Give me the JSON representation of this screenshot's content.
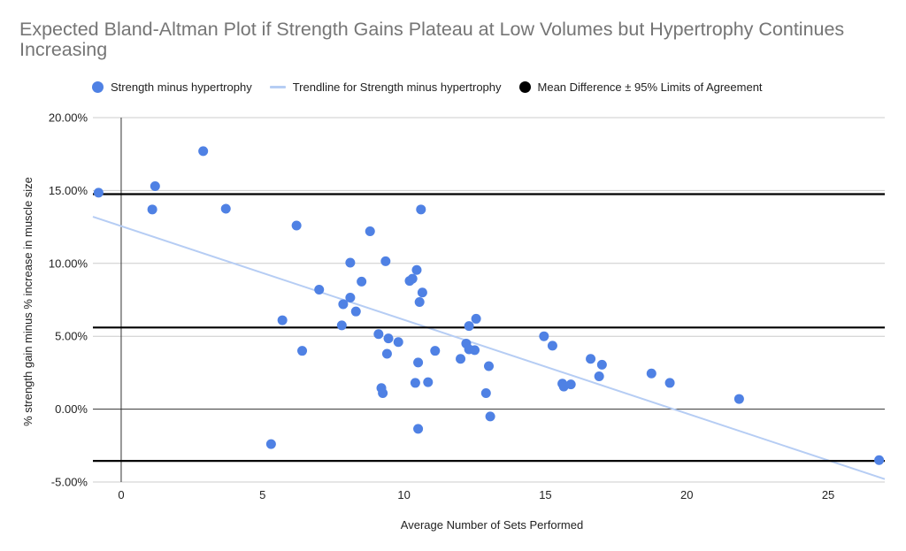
{
  "chart_data": {
    "type": "scatter",
    "title": "Expected Bland-Altman Plot if Strength Gains Plateau at Low Volumes but Hypertrophy Continues Increasing",
    "xlabel": "Average Number of Sets Performed",
    "ylabel": "% strength gain minus % increase in muscle size",
    "xlim": [
      -1,
      27
    ],
    "ylim": [
      -5,
      20
    ],
    "x_ticks": [
      0,
      5,
      10,
      15,
      20,
      25
    ],
    "x_tick_labels": [
      "0",
      "5",
      "10",
      "15",
      "20",
      "25"
    ],
    "y_ticks": [
      -5,
      0,
      5,
      10,
      15,
      20
    ],
    "y_tick_labels": [
      "-5.00%",
      "0.00%",
      "5.00%",
      "10.00%",
      "15.00%",
      "20.00%"
    ],
    "grid": "horizontal",
    "legend_position": "top",
    "legend": [
      {
        "label": "Strength minus hypertrophy",
        "marker": "dot",
        "color": "#4f81e4"
      },
      {
        "label": "Trendline for Strength minus hypertrophy",
        "marker": "line",
        "color": "#b6cdf4"
      },
      {
        "label": "Mean Difference ± 95% Limits of Agreement",
        "marker": "dot",
        "color": "#000000"
      }
    ],
    "series": [
      {
        "name": "Strength minus hypertrophy",
        "color": "#4f81e4",
        "points": [
          [
            -0.8,
            14.85
          ],
          [
            1.1,
            13.7
          ],
          [
            1.2,
            15.3
          ],
          [
            2.9,
            17.7
          ],
          [
            3.7,
            13.75
          ],
          [
            5.3,
            -2.4
          ],
          [
            5.7,
            6.1
          ],
          [
            6.2,
            12.6
          ],
          [
            6.4,
            4.0
          ],
          [
            7.0,
            8.2
          ],
          [
            7.8,
            5.75
          ],
          [
            7.85,
            7.2
          ],
          [
            8.1,
            10.05
          ],
          [
            8.1,
            7.65
          ],
          [
            8.3,
            6.7
          ],
          [
            8.5,
            8.75
          ],
          [
            8.8,
            12.2
          ],
          [
            9.1,
            5.15
          ],
          [
            9.2,
            1.45
          ],
          [
            9.25,
            1.1
          ],
          [
            9.35,
            10.15
          ],
          [
            9.4,
            3.8
          ],
          [
            9.45,
            4.85
          ],
          [
            9.8,
            4.6
          ],
          [
            10.2,
            8.8
          ],
          [
            10.3,
            8.95
          ],
          [
            10.4,
            1.8
          ],
          [
            10.45,
            9.55
          ],
          [
            10.5,
            3.2
          ],
          [
            10.5,
            -1.35
          ],
          [
            10.55,
            7.35
          ],
          [
            10.6,
            13.7
          ],
          [
            10.65,
            8.0
          ],
          [
            10.85,
            1.85
          ],
          [
            11.1,
            4.0
          ],
          [
            12.0,
            3.45
          ],
          [
            12.2,
            4.5
          ],
          [
            12.3,
            4.1
          ],
          [
            12.3,
            5.7
          ],
          [
            12.5,
            4.05
          ],
          [
            12.55,
            6.2
          ],
          [
            12.9,
            1.1
          ],
          [
            13.0,
            2.95
          ],
          [
            13.05,
            -0.5
          ],
          [
            14.95,
            5.0
          ],
          [
            15.25,
            4.35
          ],
          [
            15.6,
            1.75
          ],
          [
            15.65,
            1.55
          ],
          [
            15.9,
            1.7
          ],
          [
            16.6,
            3.45
          ],
          [
            16.9,
            2.25
          ],
          [
            17.0,
            3.05
          ],
          [
            18.75,
            2.45
          ],
          [
            19.4,
            1.8
          ],
          [
            21.85,
            0.7
          ],
          [
            26.8,
            -3.5
          ]
        ]
      }
    ],
    "trendline": {
      "name": "Trendline for Strength minus hypertrophy",
      "x": [
        -1,
        27
      ],
      "y": [
        13.2,
        -4.8
      ],
      "color": "#b6cdf4"
    },
    "limits_of_agreement": {
      "name": "Mean Difference ± 95% Limits of Agreement",
      "values": [
        14.75,
        5.6,
        -3.55
      ],
      "color": "#000000"
    }
  }
}
